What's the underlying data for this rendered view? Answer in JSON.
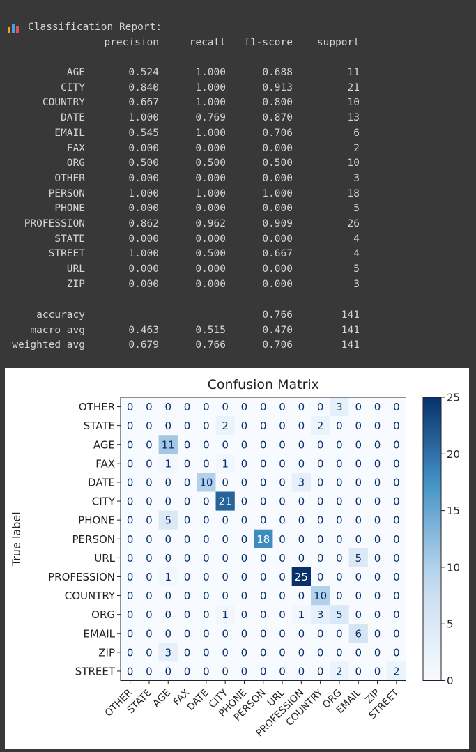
{
  "report": {
    "title": "Classification Report:",
    "headers": [
      "precision",
      "recall",
      "f1-score",
      "support"
    ],
    "rows": [
      {
        "label": "AGE",
        "precision": "0.524",
        "recall": "1.000",
        "f1": "0.688",
        "support": "11"
      },
      {
        "label": "CITY",
        "precision": "0.840",
        "recall": "1.000",
        "f1": "0.913",
        "support": "21"
      },
      {
        "label": "COUNTRY",
        "precision": "0.667",
        "recall": "1.000",
        "f1": "0.800",
        "support": "10"
      },
      {
        "label": "DATE",
        "precision": "1.000",
        "recall": "0.769",
        "f1": "0.870",
        "support": "13"
      },
      {
        "label": "EMAIL",
        "precision": "0.545",
        "recall": "1.000",
        "f1": "0.706",
        "support": "6"
      },
      {
        "label": "FAX",
        "precision": "0.000",
        "recall": "0.000",
        "f1": "0.000",
        "support": "2"
      },
      {
        "label": "ORG",
        "precision": "0.500",
        "recall": "0.500",
        "f1": "0.500",
        "support": "10"
      },
      {
        "label": "OTHER",
        "precision": "0.000",
        "recall": "0.000",
        "f1": "0.000",
        "support": "3"
      },
      {
        "label": "PERSON",
        "precision": "1.000",
        "recall": "1.000",
        "f1": "1.000",
        "support": "18"
      },
      {
        "label": "PHONE",
        "precision": "0.000",
        "recall": "0.000",
        "f1": "0.000",
        "support": "5"
      },
      {
        "label": "PROFESSION",
        "precision": "0.862",
        "recall": "0.962",
        "f1": "0.909",
        "support": "26"
      },
      {
        "label": "STATE",
        "precision": "0.000",
        "recall": "0.000",
        "f1": "0.000",
        "support": "4"
      },
      {
        "label": "STREET",
        "precision": "1.000",
        "recall": "0.500",
        "f1": "0.667",
        "support": "4"
      },
      {
        "label": "URL",
        "precision": "0.000",
        "recall": "0.000",
        "f1": "0.000",
        "support": "5"
      },
      {
        "label": "ZIP",
        "precision": "0.000",
        "recall": "0.000",
        "f1": "0.000",
        "support": "3"
      }
    ],
    "summary": [
      {
        "label": "accuracy",
        "precision": "",
        "recall": "",
        "f1": "0.766",
        "support": "141"
      },
      {
        "label": "macro avg",
        "precision": "0.463",
        "recall": "0.515",
        "f1": "0.470",
        "support": "141"
      },
      {
        "label": "weighted avg",
        "precision": "0.679",
        "recall": "0.766",
        "f1": "0.706",
        "support": "141"
      }
    ]
  },
  "colors": {
    "icon_bars": [
      "#f0a020",
      "#4aa0e6",
      "#e05050"
    ],
    "cmap_low": "#f7fbff",
    "cmap_high": "#08306b"
  },
  "chart_data": {
    "type": "heatmap",
    "title": "Confusion Matrix",
    "ylabel": "True label",
    "xlabel": "",
    "rows": [
      "OTHER",
      "STATE",
      "AGE",
      "FAX",
      "DATE",
      "CITY",
      "PHONE",
      "PERSON",
      "URL",
      "PROFESSION",
      "COUNTRY",
      "ORG",
      "EMAIL",
      "ZIP",
      "STREET"
    ],
    "columns": [
      "OTHER",
      "STATE",
      "AGE",
      "FAX",
      "DATE",
      "CITY",
      "PHONE",
      "PERSON",
      "URL",
      "PROFESSION",
      "COUNTRY",
      "ORG",
      "EMAIL",
      "ZIP",
      "STREET"
    ],
    "matrix": [
      [
        0,
        0,
        0,
        0,
        0,
        0,
        0,
        0,
        0,
        0,
        0,
        3,
        0,
        0,
        0
      ],
      [
        0,
        0,
        0,
        0,
        0,
        2,
        0,
        0,
        0,
        0,
        2,
        0,
        0,
        0,
        0
      ],
      [
        0,
        0,
        11,
        0,
        0,
        0,
        0,
        0,
        0,
        0,
        0,
        0,
        0,
        0,
        0
      ],
      [
        0,
        0,
        1,
        0,
        0,
        1,
        0,
        0,
        0,
        0,
        0,
        0,
        0,
        0,
        0
      ],
      [
        0,
        0,
        0,
        0,
        10,
        0,
        0,
        0,
        0,
        3,
        0,
        0,
        0,
        0,
        0
      ],
      [
        0,
        0,
        0,
        0,
        0,
        21,
        0,
        0,
        0,
        0,
        0,
        0,
        0,
        0,
        0
      ],
      [
        0,
        0,
        5,
        0,
        0,
        0,
        0,
        0,
        0,
        0,
        0,
        0,
        0,
        0,
        0
      ],
      [
        0,
        0,
        0,
        0,
        0,
        0,
        0,
        18,
        0,
        0,
        0,
        0,
        0,
        0,
        0
      ],
      [
        0,
        0,
        0,
        0,
        0,
        0,
        0,
        0,
        0,
        0,
        0,
        0,
        5,
        0,
        0
      ],
      [
        0,
        0,
        1,
        0,
        0,
        0,
        0,
        0,
        0,
        25,
        0,
        0,
        0,
        0,
        0
      ],
      [
        0,
        0,
        0,
        0,
        0,
        0,
        0,
        0,
        0,
        0,
        10,
        0,
        0,
        0,
        0
      ],
      [
        0,
        0,
        0,
        0,
        0,
        1,
        0,
        0,
        0,
        1,
        3,
        5,
        0,
        0,
        0
      ],
      [
        0,
        0,
        0,
        0,
        0,
        0,
        0,
        0,
        0,
        0,
        0,
        0,
        6,
        0,
        0
      ],
      [
        0,
        0,
        3,
        0,
        0,
        0,
        0,
        0,
        0,
        0,
        0,
        0,
        0,
        0,
        0
      ],
      [
        0,
        0,
        0,
        0,
        0,
        0,
        0,
        0,
        0,
        0,
        0,
        2,
        0,
        0,
        2
      ]
    ],
    "vmin": 0,
    "vmax": 25,
    "colorbar_ticks": [
      0,
      5,
      10,
      15,
      20,
      25
    ],
    "grid": false,
    "colorbar": "right"
  }
}
